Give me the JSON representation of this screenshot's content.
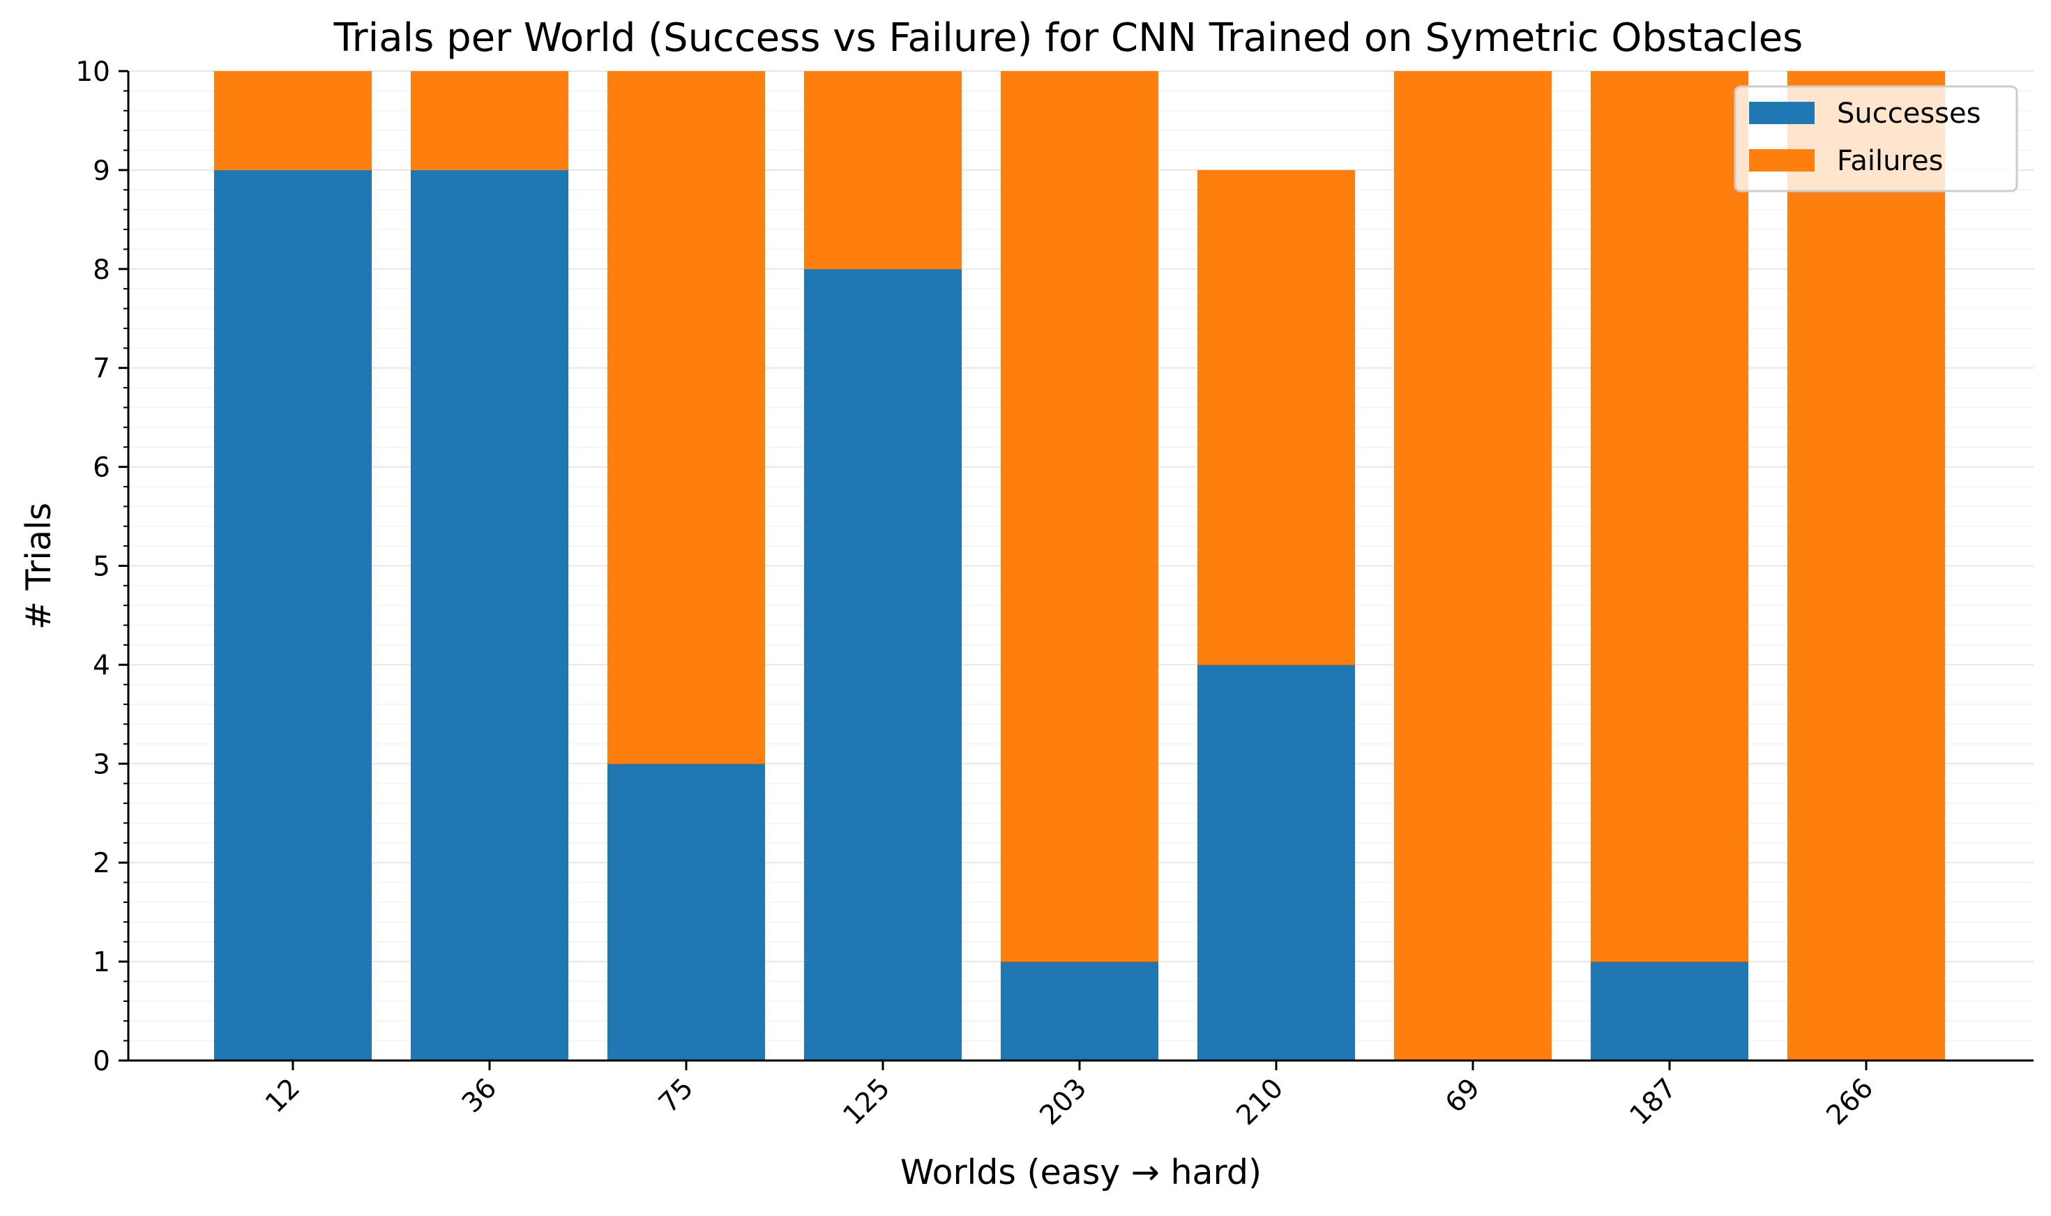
{
  "chart_data": {
    "type": "bar",
    "stacked": true,
    "title": "Trials per World (Success vs Failure) for CNN Trained on Symetric Obstacles",
    "xlabel": "Worlds (easy → hard)",
    "ylabel": "# Trials",
    "ylim": [
      0,
      10
    ],
    "yticks": [
      "0",
      "1",
      "2",
      "3",
      "4",
      "5",
      "6",
      "7",
      "8",
      "9",
      "10"
    ],
    "categories": [
      "12",
      "36",
      "75",
      "125",
      "203",
      "210",
      "69",
      "187",
      "266"
    ],
    "series": [
      {
        "name": "Successes",
        "color": "#1f77b4",
        "values": [
          9,
          9,
          3,
          8,
          1,
          4,
          0,
          1,
          0
        ]
      },
      {
        "name": "Failures",
        "color": "#ff7f0e",
        "values": [
          1,
          1,
          7,
          2,
          9,
          5,
          10,
          9,
          10
        ]
      }
    ],
    "grid": "y-major-and-minor",
    "legend_position": "top-right"
  }
}
